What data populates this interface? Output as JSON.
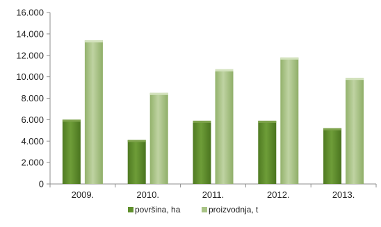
{
  "chart_data": {
    "type": "bar",
    "categories": [
      "2009.",
      "2010.",
      "2011.",
      "2012.",
      "2013."
    ],
    "series": [
      {
        "name": "površina, ha",
        "values": [
          6000,
          4100,
          5900,
          5900,
          5200
        ],
        "color": "#5f8f2c"
      },
      {
        "name": "proizvodnja, t",
        "values": [
          13400,
          8500,
          10700,
          11800,
          9900
        ],
        "color": "#a9c486"
      }
    ],
    "ylim": [
      0,
      16000
    ],
    "yticks": [
      "0",
      "2.000",
      "4.000",
      "6.000",
      "8.000",
      "10.000",
      "12.000",
      "14.000",
      "16.000"
    ],
    "ytick_values": [
      0,
      2000,
      4000,
      6000,
      8000,
      10000,
      12000,
      14000,
      16000
    ],
    "grid": false,
    "legend_position": "bottom",
    "title": "",
    "xlabel": "",
    "ylabel": ""
  }
}
